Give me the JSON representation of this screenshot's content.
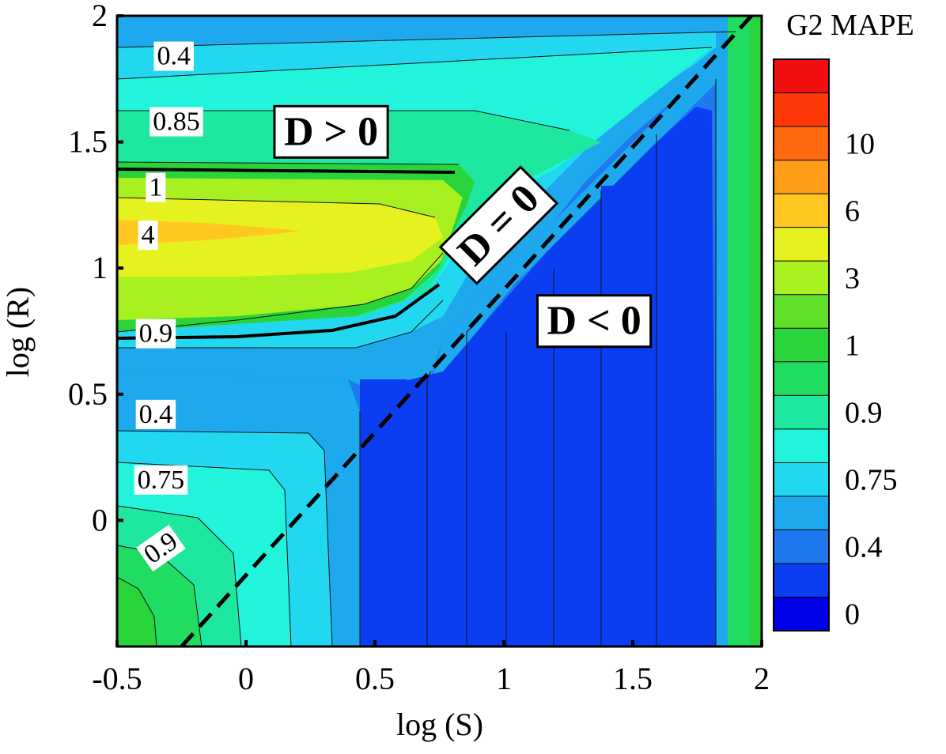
{
  "chart_data": {
    "type": "contour",
    "xlabel": "log (S)",
    "ylabel": "log (R)",
    "xlim": [
      -0.5,
      2
    ],
    "ylim": [
      -0.5,
      2
    ],
    "x_ticks": [
      {
        "value": -0.5,
        "label": "-0.5"
      },
      {
        "value": 0,
        "label": "0"
      },
      {
        "value": 0.5,
        "label": "0.5"
      },
      {
        "value": 1,
        "label": "1"
      },
      {
        "value": 1.5,
        "label": "1.5"
      },
      {
        "value": 2,
        "label": "2"
      }
    ],
    "y_ticks": [
      {
        "value": 0,
        "label": "0"
      },
      {
        "value": 0.5,
        "label": "0.5"
      },
      {
        "value": 1,
        "label": "1"
      },
      {
        "value": 1.5,
        "label": "1.5"
      },
      {
        "value": 2,
        "label": "2"
      }
    ],
    "colorbar": {
      "title": "G2 MAPE",
      "colors": [
        "#0000e8",
        "#0a3ef0",
        "#1e78ee",
        "#1ea8ee",
        "#22d8f0",
        "#22f4dc",
        "#1ee8a0",
        "#20dc60",
        "#28d43a",
        "#60e028",
        "#a8f020",
        "#e6f220",
        "#ffc820",
        "#ff9c18",
        "#ff6a10",
        "#ff3a08",
        "#f01010"
      ],
      "tick_labels": [
        {
          "label": "0",
          "level": 0.5
        },
        {
          "label": "0.4",
          "level": 2.5
        },
        {
          "label": "0.75",
          "level": 4.5
        },
        {
          "label": "0.9",
          "level": 6.5
        },
        {
          "label": "1",
          "level": 8.5
        },
        {
          "label": "3",
          "level": 10.5
        },
        {
          "label": "6",
          "level": 12.5
        },
        {
          "label": "10",
          "level": 14.5
        }
      ]
    },
    "contour_labels": [
      {
        "text": "0.4",
        "x": -0.28,
        "y": 1.84,
        "rotate": 0
      },
      {
        "text": "0.85",
        "x": -0.27,
        "y": 1.58,
        "rotate": 0
      },
      {
        "text": "1",
        "x": -0.35,
        "y": 1.32,
        "rotate": 0
      },
      {
        "text": "4",
        "x": -0.38,
        "y": 1.13,
        "rotate": 0
      },
      {
        "text": "0.9",
        "x": -0.35,
        "y": 0.74,
        "rotate": 0
      },
      {
        "text": "0.4",
        "x": -0.35,
        "y": 0.42,
        "rotate": 0
      },
      {
        "text": "0.75",
        "x": -0.33,
        "y": 0.16,
        "rotate": 0
      },
      {
        "text": "0.9",
        "x": -0.33,
        "y": -0.11,
        "rotate": -35
      }
    ],
    "annotations": [
      {
        "text": "D > 0",
        "x": 0.33,
        "y": 1.54,
        "rotate": 0
      },
      {
        "text": "D = 0",
        "x": 0.98,
        "y": 1.17,
        "rotate": -45
      },
      {
        "text": "D < 0",
        "x": 1.35,
        "y": 0.79,
        "rotate": 0
      }
    ],
    "boundary_line": {
      "style": "dashed",
      "from": {
        "x": -0.25,
        "y": -0.5
      },
      "to": {
        "x": 1.96,
        "y": 2.0
      }
    }
  }
}
